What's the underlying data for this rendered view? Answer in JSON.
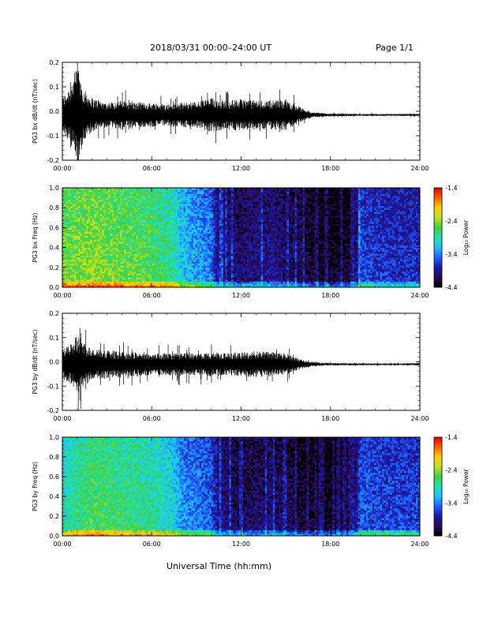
{
  "header": {
    "title": "2018/03/31  00:00–24:00 UT",
    "page": "Page 1/1"
  },
  "x_axis_title": "Universal Time (hh:mm)",
  "colorbar": {
    "label": "Log₁₀ Power",
    "ticks": [
      "-1.4",
      "-2.4",
      "-3.4",
      "-4.4"
    ],
    "range": [
      -4.4,
      -1.4
    ],
    "palette": [
      "#000000",
      "#2a0a5e",
      "#1a1aa8",
      "#2060ff",
      "#20c0ff",
      "#20e0b0",
      "#40d040",
      "#c0e020",
      "#ffd000",
      "#ff6000",
      "#e00000"
    ]
  },
  "chart_data": [
    {
      "type": "line",
      "ylabel": "PG3 bx dB/dt (nT/sec)",
      "xlim": [
        0,
        24
      ],
      "ylim": [
        -0.2,
        0.2
      ],
      "y_ticks": [
        "0.2",
        "0.1",
        "0.0",
        "-0.1",
        "-0.2"
      ],
      "x_ticks": [
        "00:00",
        "06:00",
        "12:00",
        "18:00",
        "24:00"
      ],
      "envelope": {
        "hours": [
          0,
          0.5,
          1,
          1.5,
          2,
          3,
          4,
          5,
          6,
          7,
          8,
          9,
          10,
          11,
          12,
          13,
          14,
          15,
          16,
          16.5,
          17,
          18,
          20,
          22,
          24
        ],
        "amplitude": [
          0.07,
          0.12,
          0.2,
          0.1,
          0.07,
          0.05,
          0.06,
          0.05,
          0.05,
          0.045,
          0.05,
          0.055,
          0.07,
          0.06,
          0.065,
          0.06,
          0.06,
          0.065,
          0.03,
          0.015,
          0.01,
          0.006,
          0.004,
          0.004,
          0.005
        ]
      },
      "center": -0.015,
      "color": "#000000"
    },
    {
      "type": "heatmap",
      "ylabel": "PG3 bx Freq (Hz)",
      "xlim": [
        0,
        24
      ],
      "ylim": [
        0,
        1.0
      ],
      "y_ticks": [
        "1.0",
        "0.8",
        "0.6",
        "0.4",
        "0.2",
        "0.0"
      ],
      "x_ticks": [
        "00:00",
        "06:00",
        "12:00",
        "18:00",
        "24:00"
      ],
      "power_profile": {
        "hours": [
          0,
          2,
          4,
          6,
          7.5,
          8,
          10,
          10.5,
          12,
          14,
          16,
          17,
          18,
          19.5,
          20,
          22,
          24
        ],
        "log_power": [
          -2.5,
          -2.4,
          -2.5,
          -2.6,
          -2.8,
          -3.1,
          -3.4,
          -3.9,
          -4.0,
          -3.9,
          -4.1,
          -4.3,
          -4.3,
          -4.2,
          -3.6,
          -3.7,
          -3.7
        ]
      }
    },
    {
      "type": "line",
      "ylabel": "PG3 by dB/dt (nT/sec)",
      "xlim": [
        0,
        24
      ],
      "ylim": [
        -0.2,
        0.2
      ],
      "y_ticks": [
        "0.2",
        "0.1",
        "0.0",
        "-0.1",
        "-0.2"
      ],
      "x_ticks": [
        "00:00",
        "06:00",
        "12:00",
        "18:00",
        "24:00"
      ],
      "envelope": {
        "hours": [
          0,
          0.5,
          1,
          1.5,
          2,
          3,
          4,
          5,
          6,
          7,
          8,
          9,
          10,
          11,
          12,
          13,
          14,
          15,
          16,
          16.5,
          17,
          18,
          20,
          22,
          24
        ],
        "amplitude": [
          0.06,
          0.08,
          0.12,
          0.09,
          0.06,
          0.06,
          0.05,
          0.05,
          0.045,
          0.045,
          0.05,
          0.045,
          0.05,
          0.045,
          0.05,
          0.055,
          0.05,
          0.045,
          0.02,
          0.012,
          0.008,
          0.005,
          0.004,
          0.004,
          0.005
        ]
      },
      "center": -0.01,
      "color": "#000000"
    },
    {
      "type": "heatmap",
      "ylabel": "PG3 by Freq (Hz)",
      "xlim": [
        0,
        24
      ],
      "ylim": [
        0,
        1.0
      ],
      "y_ticks": [
        "1.0",
        "0.8",
        "0.6",
        "0.4",
        "0.2",
        "0.0"
      ],
      "x_ticks": [
        "00:00",
        "06:00",
        "12:00",
        "18:00",
        "24:00"
      ],
      "power_profile": {
        "hours": [
          0,
          2,
          4,
          6,
          7.5,
          8,
          10,
          10.5,
          12,
          14,
          16,
          17,
          18,
          19.5,
          20,
          22,
          24
        ],
        "log_power": [
          -2.9,
          -2.6,
          -2.7,
          -2.8,
          -3.0,
          -3.3,
          -3.5,
          -3.9,
          -4.1,
          -4.0,
          -4.2,
          -4.3,
          -4.3,
          -4.2,
          -3.5,
          -3.6,
          -3.6
        ]
      }
    }
  ]
}
